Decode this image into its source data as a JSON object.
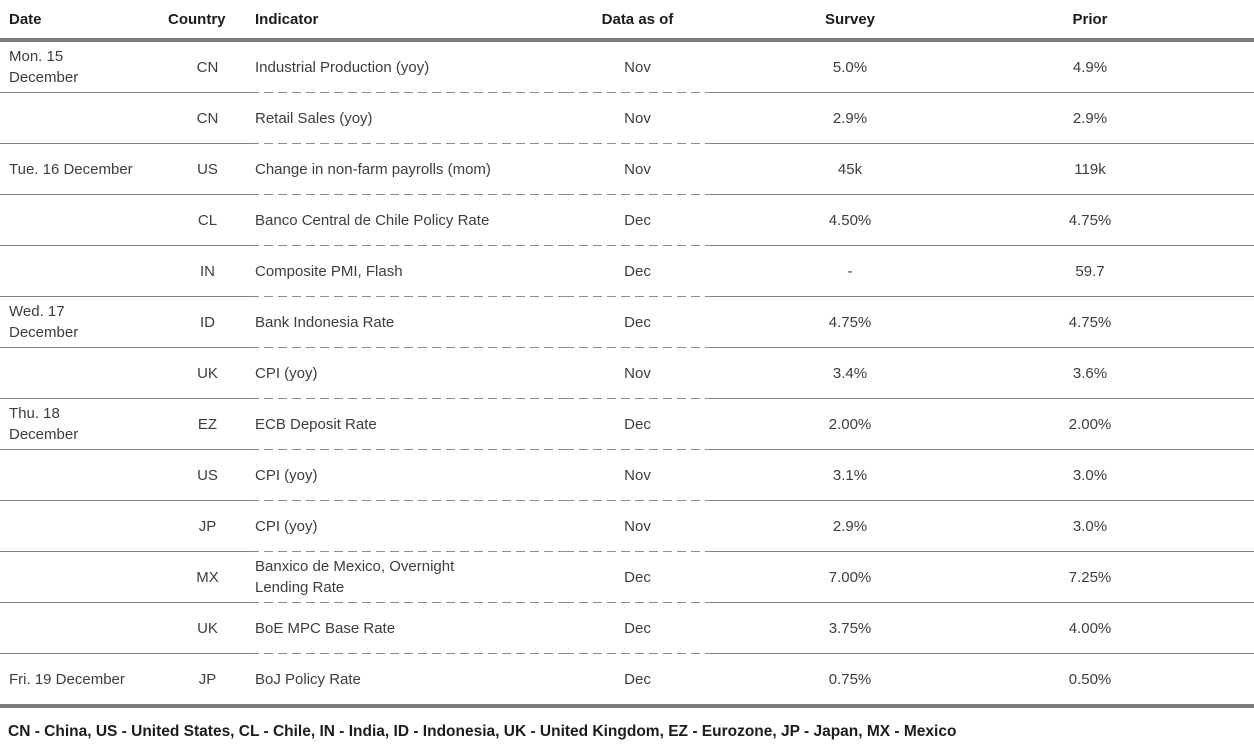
{
  "chart_data": {
    "type": "table",
    "title": "",
    "columns": [
      "Date",
      "Country",
      "Indicator",
      "Data as of",
      "Survey",
      "Prior"
    ],
    "rows": [
      [
        "Mon. 15\nDecember",
        "CN",
        "Industrial Production (yoy)",
        "Nov",
        "5.0%",
        "4.9%"
      ],
      [
        "",
        "CN",
        "Retail Sales (yoy)",
        "Nov",
        "2.9%",
        "2.9%"
      ],
      [
        "Tue. 16 December",
        "US",
        "Change in non-farm payrolls (mom)",
        "Nov",
        "45k",
        "119k"
      ],
      [
        "",
        "CL",
        "Banco Central de Chile Policy Rate",
        "Dec",
        "4.50%",
        "4.75%"
      ],
      [
        "",
        "IN",
        "Composite PMI, Flash",
        "Dec",
        "-",
        "59.7"
      ],
      [
        "Wed. 17\nDecember",
        "ID",
        "Bank Indonesia Rate",
        "Dec",
        "4.75%",
        "4.75%"
      ],
      [
        "",
        "UK",
        "CPI (yoy)",
        "Nov",
        "3.4%",
        "3.6%"
      ],
      [
        "Thu. 18\nDecember",
        "EZ",
        "ECB Deposit Rate",
        "Dec",
        "2.00%",
        "2.00%"
      ],
      [
        "",
        "US",
        "CPI (yoy)",
        "Nov",
        "3.1%",
        "3.0%"
      ],
      [
        "",
        "JP",
        "CPI (yoy)",
        "Nov",
        "2.9%",
        "3.0%"
      ],
      [
        "",
        "MX",
        "Banxico de Mexico, Overnight\nLending Rate",
        "Dec",
        "7.00%",
        "7.25%"
      ],
      [
        "",
        "UK",
        "BoE MPC Base Rate",
        "Dec",
        "3.75%",
        "4.00%"
      ],
      [
        "Fri. 19 December",
        "JP",
        "BoJ Policy Rate",
        "Dec",
        "0.75%",
        "0.50%"
      ]
    ],
    "footnote": "CN - China, US - United States, CL - Chile, IN - India, ID - Indonesia, UK - United Kingdom, EZ - Eurozone, JP - Japan, MX - Mexico",
    "layout_hints": {
      "grid": "horizontal rules only; solid under Date/Country/Survey/Prior, dashed under Indicator/Data as of; thick rules below header and below last row"
    }
  },
  "colors": {
    "rule_thick": "#7a7a7a",
    "rule_thin": "#808080",
    "rule_dashed": "#8c8c8c",
    "text_body": "#3d3d3d",
    "text_header": "#1c1c1c",
    "background": "#ffffff"
  }
}
